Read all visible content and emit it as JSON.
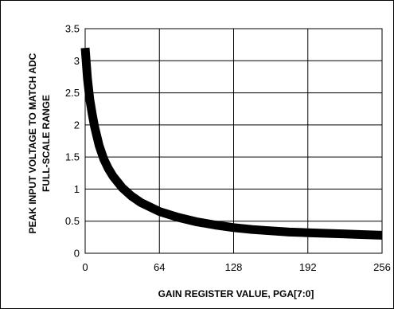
{
  "chart_data": {
    "type": "line",
    "title": "",
    "xlabel": "GAIN REGISTER VALUE, PGA[7:0]",
    "ylabel_lines": [
      "PEAK INPUT VOLTAGE TO MATCH ADC",
      "FULL-SCALE RANGE"
    ],
    "xlim": [
      0,
      256
    ],
    "ylim": [
      0,
      3.5
    ],
    "xticks": [
      "0",
      "64",
      "128",
      "192",
      "256"
    ],
    "yticks": [
      "0",
      "0.5",
      "1",
      "1.5",
      "2",
      "2.5",
      "3",
      "3.5"
    ],
    "grid": true,
    "legend": "none",
    "line_color": "#000000",
    "series": [
      {
        "x": [
          0,
          2,
          4,
          6,
          8,
          10,
          12,
          16,
          20,
          24,
          32,
          40,
          48,
          64,
          80,
          96,
          112,
          128,
          144,
          160,
          176,
          192,
          208,
          224,
          240,
          256
        ],
        "values": [
          3.2,
          2.72,
          2.4,
          2.18,
          1.98,
          1.83,
          1.68,
          1.47,
          1.32,
          1.2,
          1.02,
          0.89,
          0.79,
          0.65,
          0.56,
          0.49,
          0.44,
          0.4,
          0.37,
          0.35,
          0.33,
          0.32,
          0.31,
          0.3,
          0.29,
          0.28
        ]
      }
    ]
  }
}
